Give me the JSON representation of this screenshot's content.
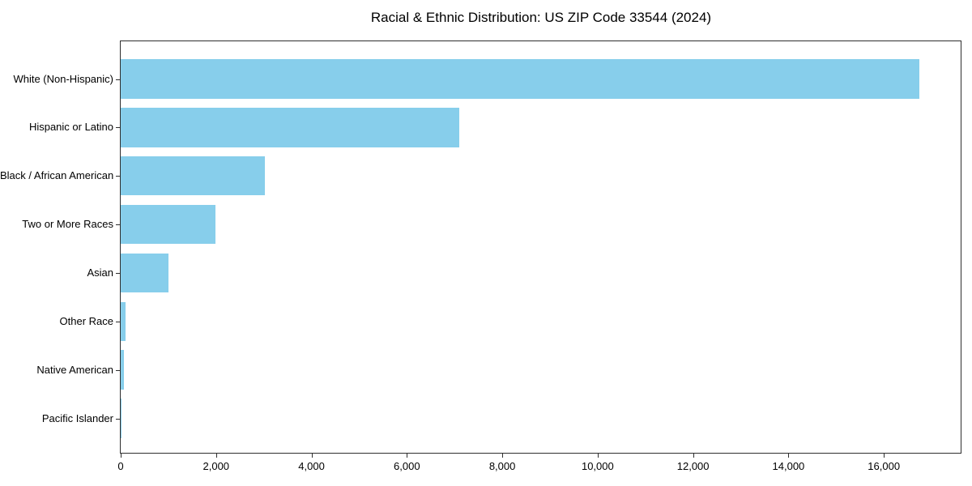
{
  "chart_data": {
    "type": "bar",
    "orientation": "horizontal",
    "title": "Racial & Ethnic Distribution: US ZIP Code 33544 (2024)",
    "categories": [
      "White (Non-Hispanic)",
      "Hispanic or Latino",
      "Black / African American",
      "Two or More Races",
      "Asian",
      "Other Race",
      "Native American",
      "Pacific Islander"
    ],
    "values": [
      16750,
      7100,
      3030,
      1980,
      1010,
      100,
      60,
      10
    ],
    "xlabel": "",
    "ylabel": "",
    "xlim": [
      0,
      17610
    ],
    "xticks": [
      0,
      2000,
      4000,
      6000,
      8000,
      10000,
      12000,
      14000,
      16000
    ],
    "xtick_labels": [
      "0",
      "2,000",
      "4,000",
      "6,000",
      "8,000",
      "10,000",
      "12,000",
      "14,000",
      "16,000"
    ],
    "bar_color": "#87CEEB",
    "grid": false,
    "legend_position": "none"
  }
}
